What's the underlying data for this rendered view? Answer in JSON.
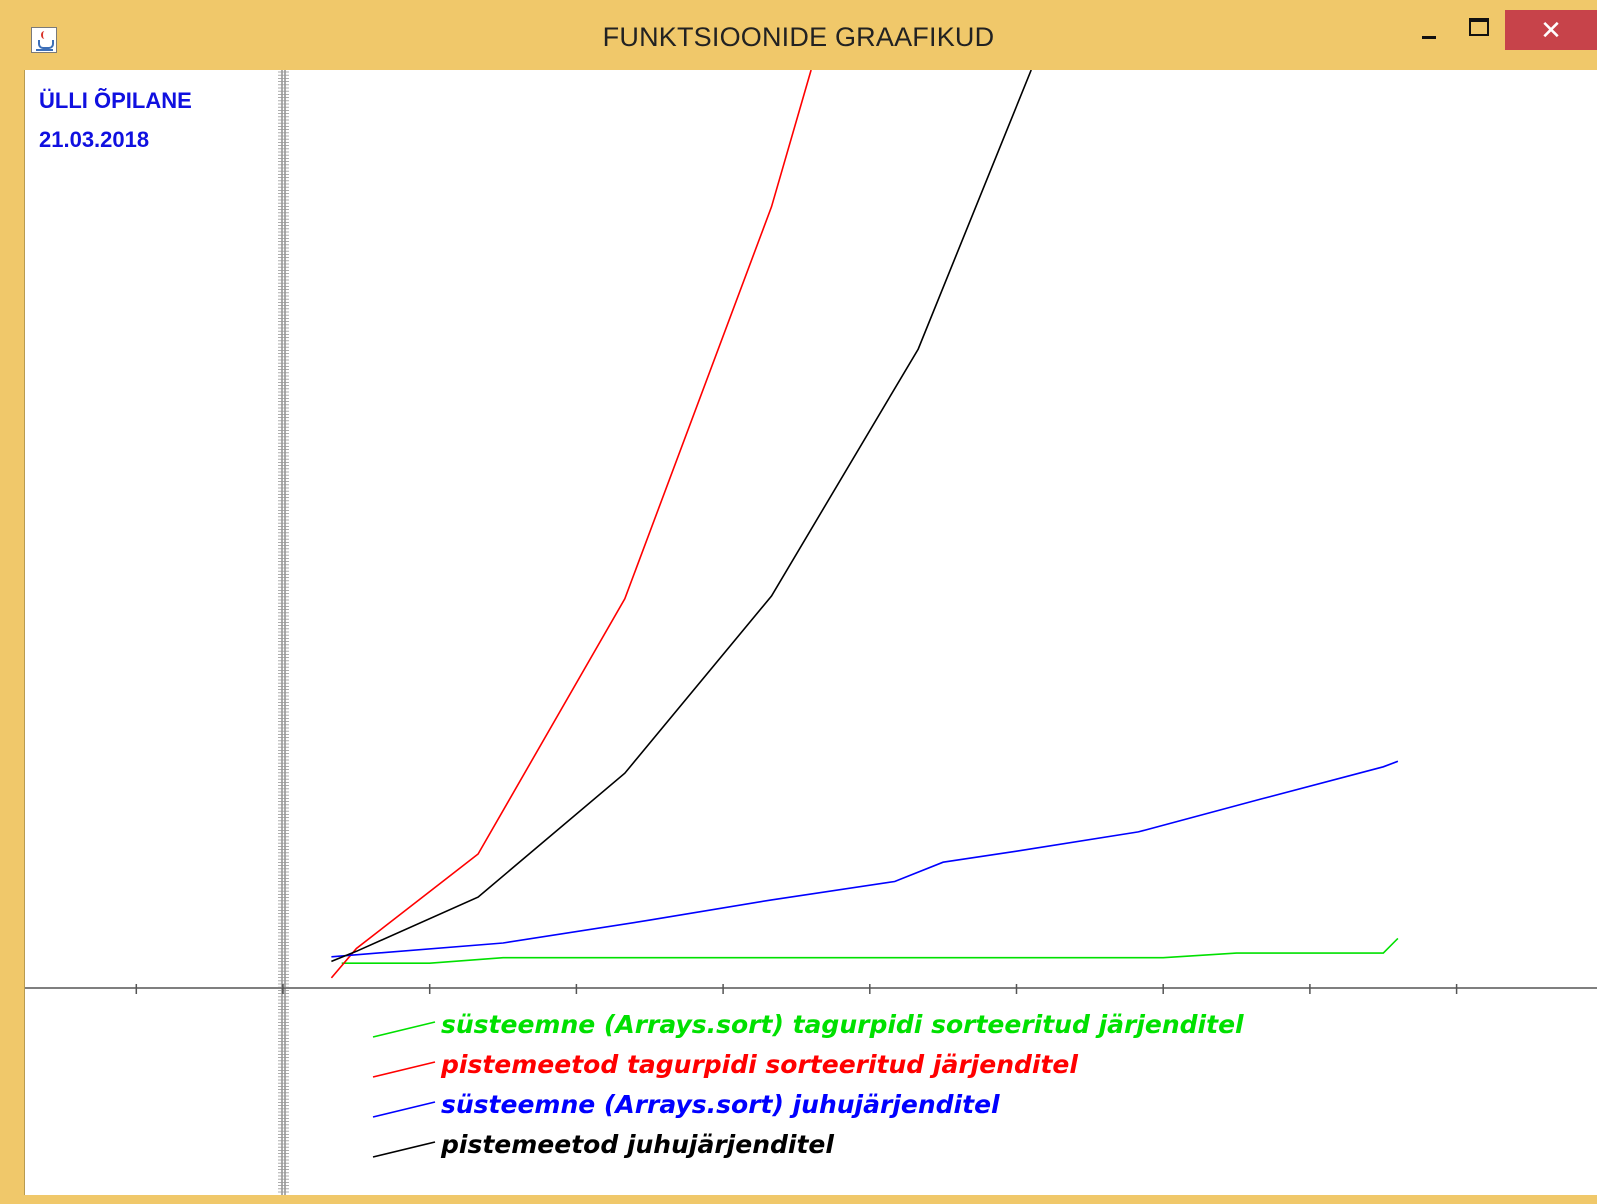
{
  "window": {
    "title": "FUNKTSIOONIDE GRAAFIKUD",
    "close_glyph": "✕"
  },
  "labels": {
    "name": "ÜLLI ÕPILANE",
    "date": "21.03.2018"
  },
  "colors": {
    "label": "#1010e0",
    "axis": "#555555",
    "titlebar": "#f0c86a",
    "close_button": "#c7434a"
  },
  "chart_data": {
    "type": "line",
    "title": "",
    "xlabel": "",
    "ylabel": "",
    "xlim": [
      -9.7,
      76
    ],
    "ylim": [
      0,
      100
    ],
    "x_ticks": [
      -10,
      0,
      10,
      20,
      30,
      40,
      50,
      60,
      70,
      80
    ],
    "grid": false,
    "legend_position": "bottom-center",
    "series": [
      {
        "name": "süsteemne (Arrays.sort) tagurpidi sorteeritud järjenditel",
        "color": "#00e000",
        "x": [
          4,
          5,
          10,
          15,
          20,
          25,
          30,
          35,
          40,
          45,
          50,
          55,
          60,
          65,
          70,
          75,
          76
        ],
        "y": [
          2.7,
          2.7,
          2.7,
          3.3,
          3.3,
          3.3,
          3.3,
          3.3,
          3.3,
          3.3,
          3.3,
          3.3,
          3.3,
          3.8,
          3.8,
          3.8,
          5.4
        ]
      },
      {
        "name": "pistemeetod tagurpidi sorteeritud järjenditel",
        "color": "#ff0000",
        "x": [
          3.3,
          5,
          13.3,
          23.3,
          33.3,
          36
        ],
        "y": [
          1.1,
          4.3,
          14.6,
          42.4,
          85.1,
          100
        ]
      },
      {
        "name": "süsteemne (Arrays.sort) juhujärjenditel",
        "color": "#0000ff",
        "x": [
          3.3,
          15,
          25,
          33.3,
          41.7,
          45,
          50,
          58.3,
          66.7,
          75,
          76
        ],
        "y": [
          3.4,
          4.9,
          7.4,
          9.6,
          11.6,
          13.7,
          14.9,
          17.0,
          20.6,
          24.1,
          24.7
        ]
      },
      {
        "name": "pistemeetod juhujärjenditel",
        "color": "#000000",
        "x": [
          3.3,
          5,
          13.3,
          23.3,
          33.3,
          43.3,
          51
        ],
        "y": [
          2.9,
          4.0,
          9.9,
          23.4,
          42.7,
          69.6,
          100
        ]
      }
    ]
  }
}
